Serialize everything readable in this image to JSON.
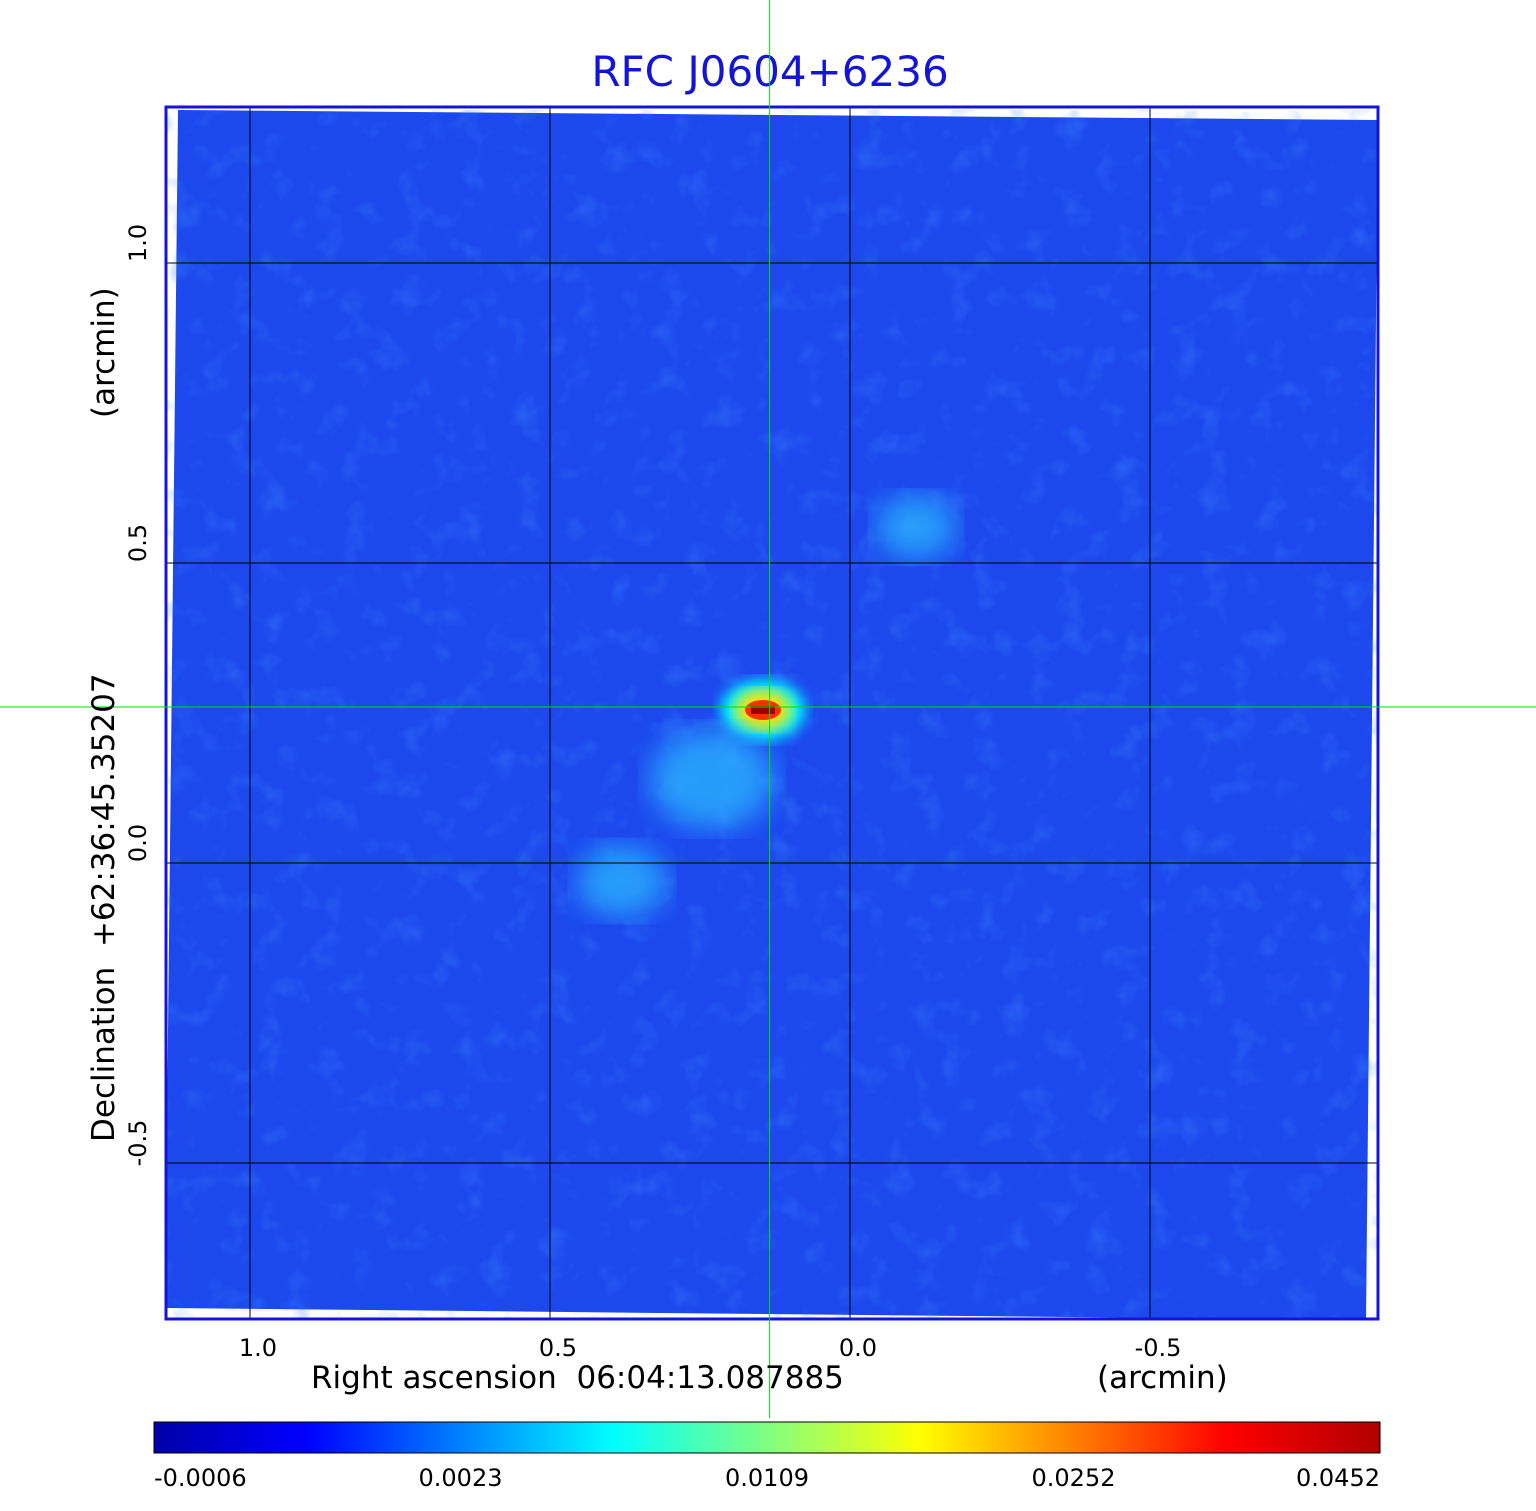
{
  "chart_data": {
    "type": "heatmap",
    "title": "RFC J0604+6236",
    "xlabel": "Right ascension  06:04:13.087885",
    "xunit": "(arcmin)",
    "ylabel": "Declination  +62:36:45.35207",
    "yunit": "(arcmin)",
    "x_ticks": [
      1.0,
      0.5,
      0.0,
      -0.5
    ],
    "x_tick_labels": [
      "1.0",
      "0.5",
      "0.0",
      "-0.5"
    ],
    "y_ticks": [
      1.0,
      0.5,
      0.0,
      -0.5
    ],
    "y_tick_labels": [
      "1.0",
      "0.5",
      "0.0",
      "-0.5"
    ],
    "xlim": [
      1.14,
      -0.88
    ],
    "ylim": [
      -0.76,
      1.26
    ],
    "grid": true,
    "crosshair": {
      "x": 0.134,
      "y": 0.26
    },
    "sources": [
      {
        "label": "core",
        "x": 0.145,
        "y": 0.255,
        "peak": 0.0452
      },
      {
        "label": "blob",
        "x": 0.23,
        "y": 0.14,
        "peak": 0.0035
      },
      {
        "label": "blob",
        "x": 0.38,
        "y": -0.03,
        "peak": 0.0021
      },
      {
        "label": "blob",
        "x": -0.11,
        "y": 0.56,
        "peak": 0.0017
      }
    ],
    "colorbar": {
      "tick_labels": [
        "-0.0006",
        "0.0023",
        "0.0109",
        "0.0252",
        "0.0452"
      ],
      "colors": [
        "#0000a8",
        "#0000ff",
        "#0080ff",
        "#00ffff",
        "#80ff80",
        "#ffff00",
        "#ff8000",
        "#ff0000",
        "#b00000"
      ]
    }
  },
  "colors": {
    "frame": "#1414d8",
    "crosshair": "#00e000",
    "background_map": "#1a4ff0"
  }
}
